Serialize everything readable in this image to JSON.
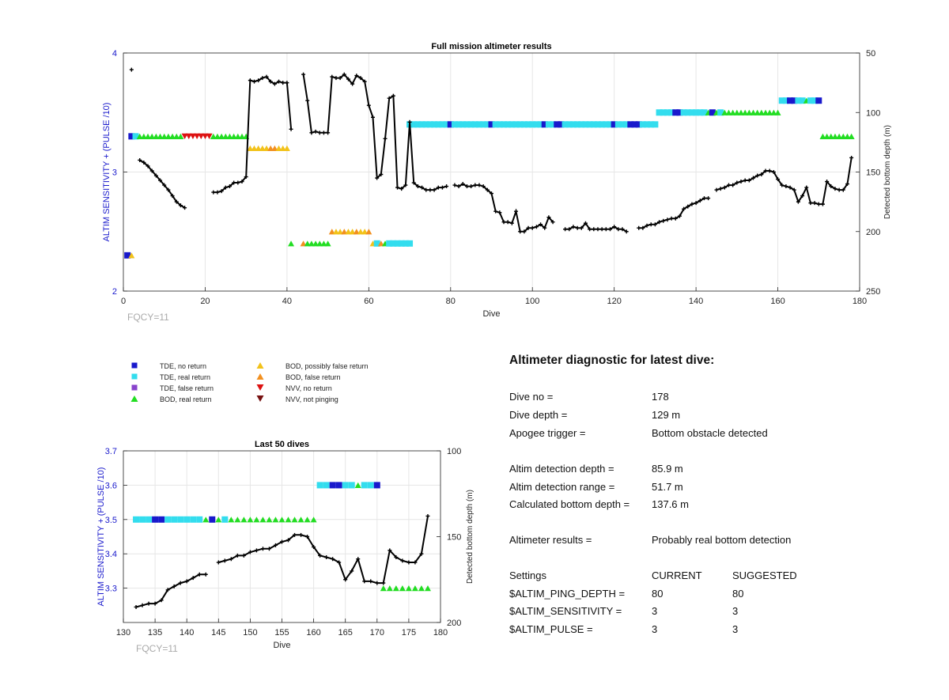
{
  "chart_data": [
    {
      "type": "scatter",
      "title": "Full mission altimeter results",
      "xlabel": "Dive",
      "ylabel": "ALTIM SENSITIVITY + (PULSE /10)",
      "ylabel_right": "Detected bottom depth (m)",
      "xlim": [
        0,
        180
      ],
      "ylim": [
        2,
        4
      ],
      "ylim_right": [
        250,
        50
      ],
      "x_ticks": [
        "0",
        "20",
        "40",
        "60",
        "80",
        "100",
        "120",
        "140",
        "160",
        "180"
      ],
      "y_ticks": [
        "2",
        "3",
        "4"
      ],
      "y_right_ticks": [
        "50",
        "100",
        "150",
        "200",
        "250"
      ],
      "grid": true,
      "annotation": "FQCY=11",
      "depth_series": [
        [
          2,
          64
        ],
        [
          4,
          140
        ],
        [
          5,
          142
        ],
        [
          6,
          145
        ],
        [
          7,
          149
        ],
        [
          8,
          153
        ],
        [
          9,
          157
        ],
        [
          10,
          161
        ],
        [
          11,
          165
        ],
        [
          12,
          170
        ],
        [
          13,
          175
        ],
        [
          14,
          178
        ],
        [
          15,
          180
        ],
        [
          22,
          167
        ],
        [
          23,
          167
        ],
        [
          24,
          166
        ],
        [
          25,
          163
        ],
        [
          26,
          162
        ],
        [
          27,
          159
        ],
        [
          28,
          159
        ],
        [
          29,
          158
        ],
        [
          30,
          154
        ],
        [
          31,
          73
        ],
        [
          32,
          74
        ],
        [
          33,
          73
        ],
        [
          34,
          71
        ],
        [
          35,
          70
        ],
        [
          36,
          74
        ],
        [
          37,
          76
        ],
        [
          38,
          74
        ],
        [
          39,
          75
        ],
        [
          40,
          75
        ],
        [
          41,
          114
        ],
        [
          44,
          68
        ],
        [
          45,
          90
        ],
        [
          46,
          117
        ],
        [
          47,
          116
        ],
        [
          48,
          117
        ],
        [
          49,
          117
        ],
        [
          50,
          117
        ],
        [
          51,
          70
        ],
        [
          52,
          71
        ],
        [
          53,
          71
        ],
        [
          54,
          68
        ],
        [
          55,
          72
        ],
        [
          56,
          76
        ],
        [
          57,
          69
        ],
        [
          58,
          71
        ],
        [
          59,
          74
        ],
        [
          60,
          94
        ],
        [
          61,
          104
        ],
        [
          62,
          155
        ],
        [
          63,
          152
        ],
        [
          64,
          122
        ],
        [
          65,
          88
        ],
        [
          66,
          86
        ],
        [
          67,
          163
        ],
        [
          68,
          164
        ],
        [
          69,
          161
        ],
        [
          70,
          108
        ],
        [
          71,
          159
        ],
        [
          72,
          162
        ],
        [
          73,
          163
        ],
        [
          74,
          165
        ],
        [
          75,
          165
        ],
        [
          76,
          165
        ],
        [
          77,
          163
        ],
        [
          78,
          163
        ],
        [
          79,
          162
        ],
        [
          81,
          161
        ],
        [
          82,
          162
        ],
        [
          83,
          160
        ],
        [
          84,
          162
        ],
        [
          85,
          162
        ],
        [
          86,
          161
        ],
        [
          87,
          161
        ],
        [
          88,
          162
        ],
        [
          89,
          165
        ],
        [
          90,
          168
        ],
        [
          91,
          183
        ],
        [
          92,
          184
        ],
        [
          93,
          192
        ],
        [
          94,
          192
        ],
        [
          95,
          193
        ],
        [
          96,
          183
        ],
        [
          97,
          200
        ],
        [
          98,
          200
        ],
        [
          99,
          197
        ],
        [
          100,
          197
        ],
        [
          101,
          196
        ],
        [
          102,
          194
        ],
        [
          103,
          197
        ],
        [
          104,
          188
        ],
        [
          105,
          192
        ],
        [
          108,
          198
        ],
        [
          109,
          198
        ],
        [
          110,
          196
        ],
        [
          111,
          197
        ],
        [
          112,
          197
        ],
        [
          113,
          193
        ],
        [
          114,
          198
        ],
        [
          115,
          198
        ],
        [
          116,
          198
        ],
        [
          117,
          198
        ],
        [
          118,
          198
        ],
        [
          119,
          198
        ],
        [
          120,
          196
        ],
        [
          121,
          198
        ],
        [
          122,
          198
        ],
        [
          123,
          200
        ],
        [
          126,
          197
        ],
        [
          127,
          197
        ],
        [
          128,
          195
        ],
        [
          129,
          194
        ],
        [
          130,
          194
        ],
        [
          131,
          192
        ],
        [
          132,
          191
        ],
        [
          133,
          190
        ],
        [
          134,
          189
        ],
        [
          135,
          189
        ],
        [
          136,
          187
        ],
        [
          137,
          181
        ],
        [
          138,
          179
        ],
        [
          139,
          177
        ],
        [
          140,
          176
        ],
        [
          141,
          174
        ],
        [
          142,
          172
        ],
        [
          143,
          172
        ],
        [
          145,
          165
        ],
        [
          146,
          164
        ],
        [
          147,
          163
        ],
        [
          148,
          161
        ],
        [
          149,
          161
        ],
        [
          150,
          159
        ],
        [
          151,
          158
        ],
        [
          152,
          157
        ],
        [
          153,
          157
        ],
        [
          154,
          155
        ],
        [
          155,
          153
        ],
        [
          156,
          152
        ],
        [
          157,
          149
        ],
        [
          158,
          149
        ],
        [
          159,
          150
        ],
        [
          160,
          156
        ],
        [
          161,
          161
        ],
        [
          162,
          162
        ],
        [
          163,
          163
        ],
        [
          164,
          165
        ],
        [
          165,
          175
        ],
        [
          166,
          170
        ],
        [
          167,
          163
        ],
        [
          168,
          176
        ],
        [
          169,
          176
        ],
        [
          170,
          177
        ],
        [
          171,
          177
        ],
        [
          172,
          158
        ],
        [
          173,
          162
        ],
        [
          174,
          164
        ],
        [
          175,
          165
        ],
        [
          176,
          165
        ],
        [
          177,
          160
        ],
        [
          178,
          138
        ]
      ]
    },
    {
      "type": "scatter",
      "title": "Last 50 dives",
      "xlabel": "Dive",
      "ylabel": "ALTIM SENSITIVITY + (PULSE /10)",
      "ylabel_right": "Detected bottom depth (m)",
      "xlim": [
        130,
        180
      ],
      "ylim": [
        3.2,
        3.7
      ],
      "ylim_right": [
        200,
        100
      ],
      "x_ticks": [
        "130",
        "135",
        "140",
        "145",
        "150",
        "155",
        "160",
        "165",
        "170",
        "175",
        "180"
      ],
      "y_ticks": [
        "3.3",
        "3.4",
        "3.5",
        "3.6",
        "3.7"
      ],
      "y_right_ticks": [
        "100",
        "150",
        "200"
      ],
      "grid": true,
      "annotation": "FQCY=11"
    }
  ],
  "legend": {
    "items": [
      {
        "label": "TDE, no return",
        "marker": "square",
        "color": "#1919cc"
      },
      {
        "label": "TDE, real return",
        "marker": "square",
        "color": "#33ddee"
      },
      {
        "label": "TDE, false return",
        "marker": "square",
        "color": "#8844cc"
      },
      {
        "label": "BOD, real return",
        "marker": "triangle-up",
        "color": "#22dd22"
      },
      {
        "label": "BOD, possibly false return",
        "marker": "triangle-up",
        "color": "#f2c21a"
      },
      {
        "label": "BOD, false return",
        "marker": "triangle-up",
        "color": "#f29020"
      },
      {
        "label": "NVV, no return",
        "marker": "triangle-down",
        "color": "#dd1111"
      },
      {
        "label": "NVV, not pinging",
        "marker": "triangle-down",
        "color": "#771111"
      }
    ]
  },
  "diagnostic": {
    "title": "Altimeter diagnostic for latest dive:",
    "rows": [
      {
        "label": "Dive no =",
        "value": "178"
      },
      {
        "label": "Dive depth =",
        "value": "129 m"
      },
      {
        "label": "Apogee trigger =",
        "value": "Bottom obstacle detected"
      },
      {
        "label": "Altim detection depth =",
        "value": "85.9 m"
      },
      {
        "label": "Altim detection range =",
        "value": "51.7 m"
      },
      {
        "label": "Calculated bottom depth =",
        "value": "137.6 m"
      },
      {
        "label": "Altimeter results =",
        "value": "Probably real bottom detection"
      }
    ],
    "settings_header": {
      "label": "Settings",
      "current": "CURRENT",
      "suggested": "SUGGESTED"
    },
    "settings": [
      {
        "label": "$ALTIM_PING_DEPTH =",
        "current": "80",
        "suggested": "80"
      },
      {
        "label": "$ALTIM_SENSITIVITY =",
        "current": "3",
        "suggested": "3"
      },
      {
        "label": "$ALTIM_PULSE =",
        "current": "3",
        "suggested": "3"
      }
    ]
  },
  "colors": {
    "axis_left": "#1a1acc",
    "grid": "#e6e6e6",
    "annotation": "#aaaaaa",
    "line": "#000000"
  }
}
